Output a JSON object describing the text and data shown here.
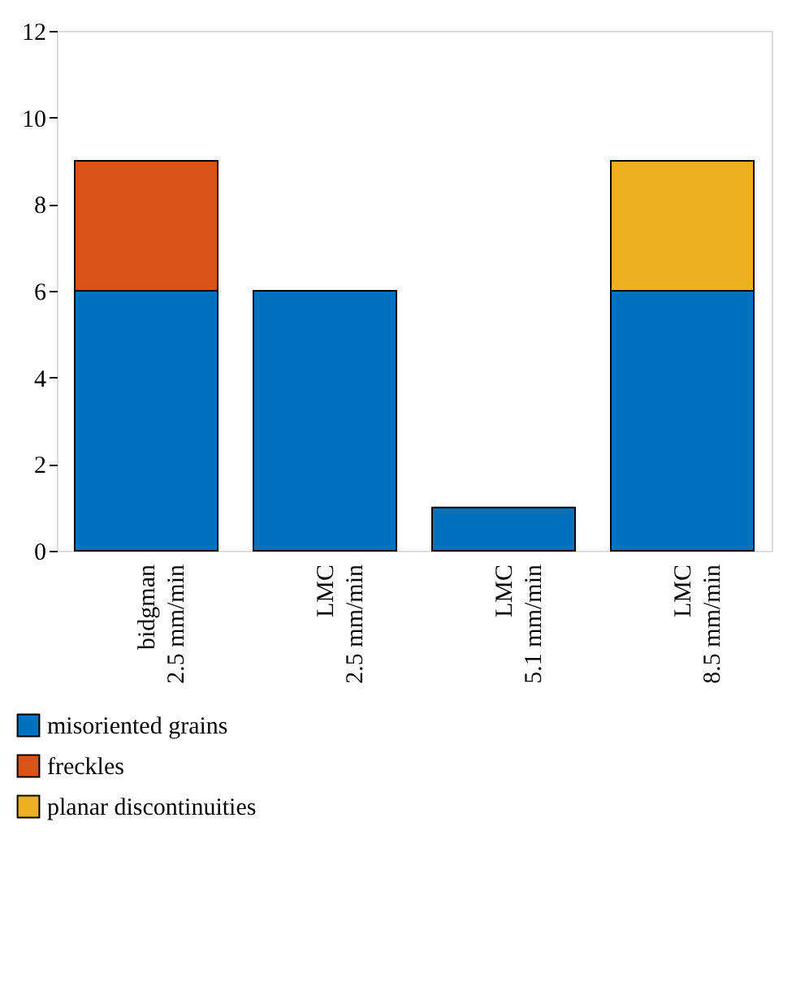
{
  "chart_data": {
    "type": "bar",
    "stacked": true,
    "categories": [
      "bidgman\n2.5 mm/min",
      "LMC\n2.5 mm/min",
      "LMC\n5.1 mm/min",
      "LMC\n8.5 mm/min"
    ],
    "series": [
      {
        "name": "misoriented grains",
        "color": "#0072bd",
        "values": [
          6,
          6,
          1,
          6
        ]
      },
      {
        "name": "freckles",
        "color": "#d95319",
        "values": [
          3,
          null,
          null,
          null
        ]
      },
      {
        "name": "planar discontinuities",
        "color": "#edb120",
        "values": [
          null,
          null,
          null,
          3
        ]
      }
    ],
    "ylim": [
      0,
      12
    ],
    "yticks": [
      0,
      2,
      4,
      6,
      8,
      10,
      12
    ],
    "grid": false,
    "legend": "bottom"
  }
}
